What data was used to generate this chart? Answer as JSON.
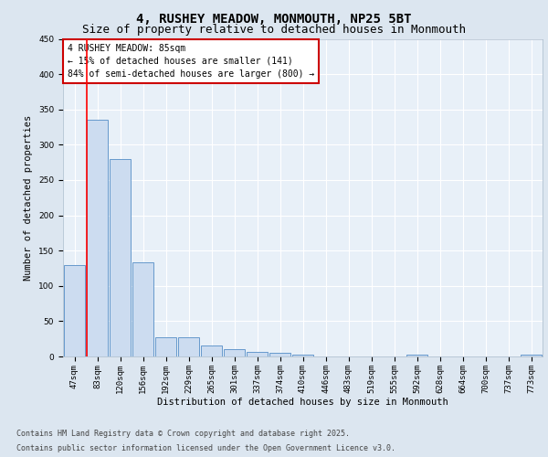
{
  "title1": "4, RUSHEY MEADOW, MONMOUTH, NP25 5BT",
  "title2": "Size of property relative to detached houses in Monmouth",
  "xlabel": "Distribution of detached houses by size in Monmouth",
  "ylabel": "Number of detached properties",
  "categories": [
    "47sqm",
    "83sqm",
    "120sqm",
    "156sqm",
    "192sqm",
    "229sqm",
    "265sqm",
    "301sqm",
    "337sqm",
    "374sqm",
    "410sqm",
    "446sqm",
    "483sqm",
    "519sqm",
    "555sqm",
    "592sqm",
    "628sqm",
    "664sqm",
    "700sqm",
    "737sqm",
    "773sqm"
  ],
  "values": [
    130,
    335,
    280,
    133,
    27,
    27,
    15,
    10,
    7,
    5,
    2,
    0,
    0,
    0,
    0,
    2,
    0,
    0,
    0,
    0,
    2
  ],
  "bar_color": "#ccdcf0",
  "bar_edge_color": "#6699cc",
  "annotation_text": "4 RUSHEY MEADOW: 85sqm\n← 15% of detached houses are smaller (141)\n84% of semi-detached houses are larger (800) →",
  "annotation_box_color": "#ffffff",
  "annotation_box_edge_color": "#cc0000",
  "red_line_x": 0.55,
  "ylim": [
    0,
    450
  ],
  "yticks": [
    0,
    50,
    100,
    150,
    200,
    250,
    300,
    350,
    400,
    450
  ],
  "footer1": "Contains HM Land Registry data © Crown copyright and database right 2025.",
  "footer2": "Contains public sector information licensed under the Open Government Licence v3.0.",
  "bg_color": "#dce6f0",
  "plot_bg_color": "#e8f0f8",
  "grid_color": "#ffffff",
  "title_fontsize": 10,
  "subtitle_fontsize": 9,
  "axis_label_fontsize": 7.5,
  "tick_fontsize": 6.5,
  "annotation_fontsize": 7,
  "footer_fontsize": 6
}
